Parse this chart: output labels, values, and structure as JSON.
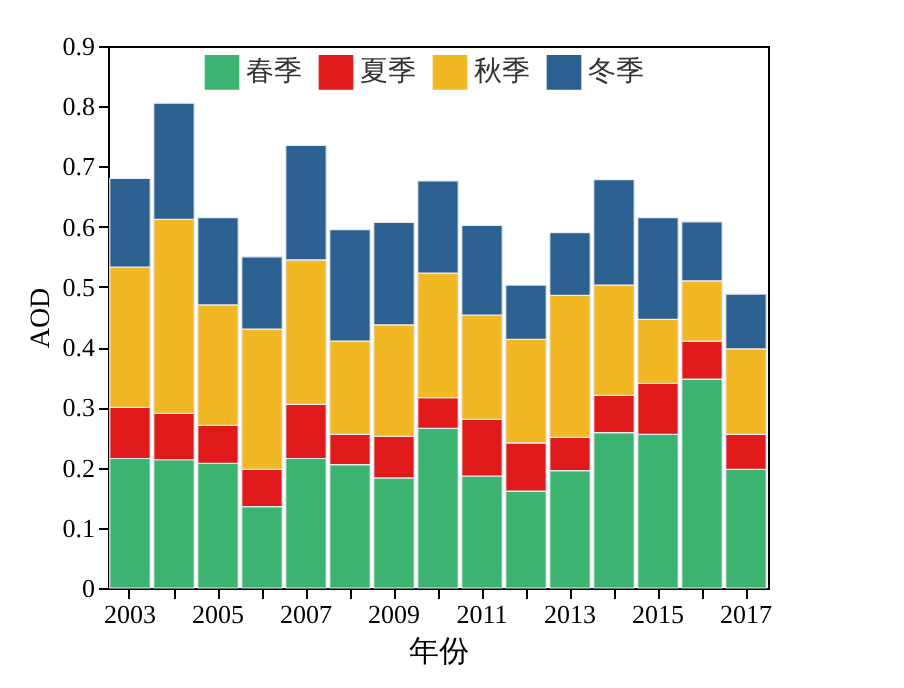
{
  "chart_data": {
    "type": "bar",
    "stacked": true,
    "xlabel": "年份",
    "ylabel": "AOD",
    "categories": [
      "2003",
      null,
      "2005",
      null,
      "2007",
      null,
      "2009",
      null,
      "2011",
      null,
      "2013",
      null,
      "2015",
      null,
      "2017"
    ],
    "series": [
      {
        "name": "春季",
        "color": "#3cb371",
        "values": [
          0.215,
          0.213,
          0.207,
          0.135,
          0.215,
          0.205,
          0.183,
          0.265,
          0.186,
          0.161,
          0.195,
          0.258,
          0.255,
          0.347,
          0.197
        ]
      },
      {
        "name": "夏季",
        "color": "#e01a1a",
        "values": [
          0.085,
          0.077,
          0.063,
          0.062,
          0.09,
          0.05,
          0.069,
          0.051,
          0.094,
          0.08,
          0.055,
          0.062,
          0.085,
          0.063,
          0.058
        ]
      },
      {
        "name": "秋季",
        "color": "#f2b824",
        "values": [
          0.233,
          0.322,
          0.2,
          0.233,
          0.24,
          0.155,
          0.185,
          0.207,
          0.173,
          0.172,
          0.236,
          0.183,
          0.106,
          0.1,
          0.142
        ]
      },
      {
        "name": "冬季",
        "color": "#2c6090",
        "values": [
          0.147,
          0.193,
          0.145,
          0.12,
          0.19,
          0.185,
          0.17,
          0.153,
          0.149,
          0.09,
          0.104,
          0.175,
          0.169,
          0.098,
          0.091
        ]
      }
    ],
    "ylim": [
      0,
      0.9
    ],
    "yticks": [
      0,
      0.1,
      0.2,
      0.3,
      0.4,
      0.5,
      0.6,
      0.7,
      0.8,
      0.9
    ],
    "legend": "top",
    "grid": false
  }
}
